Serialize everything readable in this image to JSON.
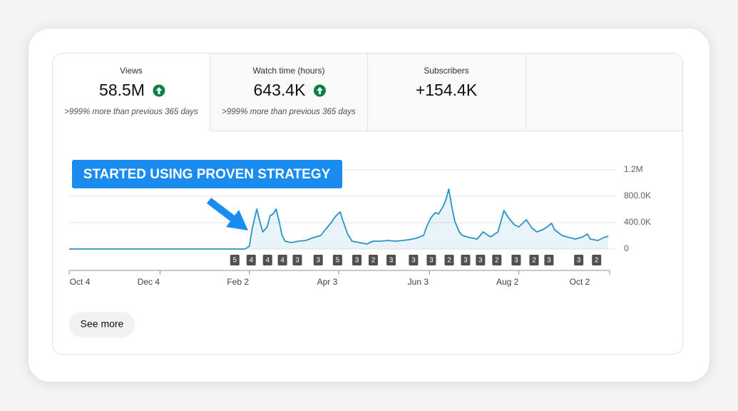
{
  "tabs": [
    {
      "label": "Views",
      "value": "58.5M",
      "trend": "up",
      "note": ">999% more than previous 365 days"
    },
    {
      "label": "Watch time (hours)",
      "value": "643.4K",
      "trend": "up",
      "note": ">999% more than previous 365 days"
    },
    {
      "label": "Subscribers",
      "value": "+154.4K"
    }
  ],
  "chart_data": {
    "type": "area",
    "annotation": "STARTED USING PROVEN STRATEGY",
    "color": "#2a93c6",
    "x": [
      0,
      118,
      121,
      123,
      126,
      128,
      130,
      133,
      135,
      137,
      139,
      141,
      143,
      145,
      149,
      154,
      159,
      164,
      169,
      172,
      176,
      179,
      182,
      184,
      187,
      190,
      195,
      200,
      204,
      209,
      214,
      219,
      224,
      228,
      233,
      238,
      240,
      243,
      246,
      248,
      251,
      253,
      255,
      257,
      259,
      262,
      264,
      269,
      274,
      278,
      283,
      288,
      292,
      295,
      299,
      302,
      307,
      311,
      314,
      318,
      321,
      324,
      326,
      331,
      336,
      340,
      345,
      348,
      350,
      355,
      359,
      362
    ],
    "values": [
      0,
      0,
      43000,
      313000,
      605000,
      422000,
      259000,
      335000,
      508000,
      530000,
      605000,
      422000,
      205000,
      119000,
      97000,
      119000,
      130000,
      173000,
      205000,
      292000,
      400000,
      497000,
      562000,
      422000,
      227000,
      119000,
      97000,
      76000,
      119000,
      119000,
      130000,
      119000,
      130000,
      141000,
      162000,
      205000,
      335000,
      476000,
      551000,
      530000,
      638000,
      746000,
      908000,
      638000,
      422000,
      259000,
      205000,
      173000,
      151000,
      259000,
      184000,
      259000,
      584000,
      476000,
      368000,
      335000,
      443000,
      313000,
      259000,
      292000,
      335000,
      389000,
      292000,
      205000,
      173000,
      151000,
      184000,
      227000,
      151000,
      130000,
      173000,
      195000
    ],
    "xlim": [
      0,
      363
    ],
    "xticks": [
      {
        "value": 0,
        "label": "Oct 4"
      },
      {
        "value": 61,
        "label": "Dec 4"
      },
      {
        "value": 121,
        "label": "Feb 2"
      },
      {
        "value": 181,
        "label": "Apr 3"
      },
      {
        "value": 242,
        "label": "Jun 3"
      },
      {
        "value": 302,
        "label": "Aug 2"
      },
      {
        "value": 363,
        "label": "Oct 2"
      }
    ],
    "ylim": [
      0,
      1200000
    ],
    "yticks": [
      0,
      {
        "value": 400000,
        "label": "400.0K"
      },
      {
        "value": 800000,
        "label": "800.0K"
      },
      {
        "value": 1200000,
        "label": "1.2M"
      }
    ],
    "grid": true,
    "markers": {
      "x": [
        111,
        122,
        133,
        143,
        153,
        167,
        180,
        193,
        204,
        216,
        231,
        243,
        255,
        266,
        276,
        287,
        300,
        312,
        322,
        342,
        354
      ],
      "labels": [
        5,
        4,
        4,
        4,
        3,
        3,
        5,
        3,
        2,
        3,
        3,
        3,
        2,
        3,
        3,
        2,
        3,
        2,
        3,
        3,
        2
      ]
    }
  },
  "button": "See more"
}
